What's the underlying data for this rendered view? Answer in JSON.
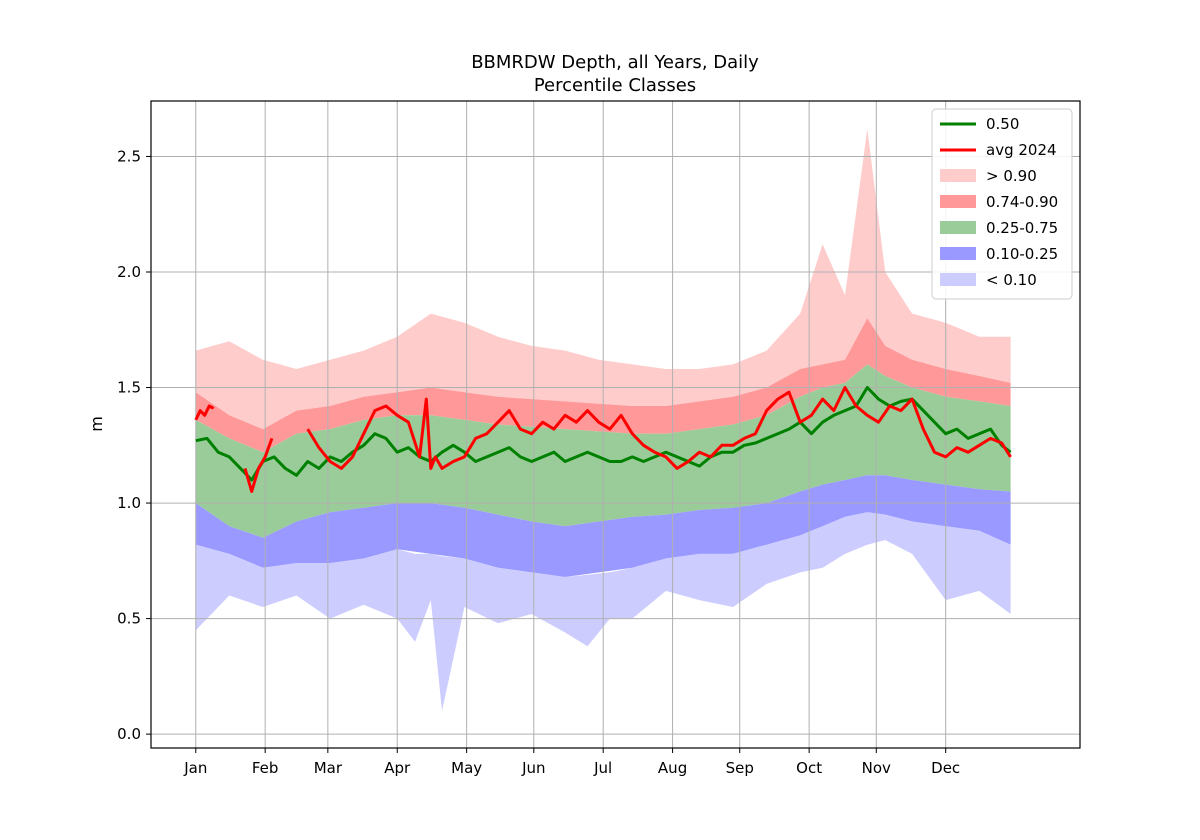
{
  "chart_data": {
    "type": "area",
    "title": "BBMRDW Depth, all Years, Daily",
    "subtitle": "Percentile Classes",
    "xlabel": "",
    "ylabel": "m",
    "xlim": [
      -20,
      395
    ],
    "ylim": [
      -0.06,
      2.74
    ],
    "yticks": [
      0.0,
      0.5,
      1.0,
      1.5,
      2.0,
      2.5
    ],
    "ytick_labels": [
      "0.0",
      "0.5",
      "1.0",
      "1.5",
      "2.0",
      "2.5"
    ],
    "xticks": [
      0,
      31,
      59,
      90,
      121,
      151,
      182,
      213,
      243,
      274,
      304,
      335
    ],
    "xtick_labels": [
      "Jan",
      "Feb",
      "Mar",
      "Apr",
      "May",
      "Jun",
      "Jul",
      "Aug",
      "Sep",
      "Oct",
      "Nov",
      "Dec"
    ],
    "grid": true,
    "legend_position": "top-right",
    "bands": [
      {
        "name": "> 0.90",
        "color": "#ffcccc",
        "x": [
          0,
          15,
          30,
          45,
          60,
          75,
          90,
          105,
          120,
          135,
          150,
          165,
          180,
          195,
          210,
          225,
          240,
          255,
          270,
          280,
          290,
          300,
          308,
          320,
          335,
          350,
          364
        ],
        "upper": [
          1.66,
          1.7,
          1.62,
          1.58,
          1.62,
          1.66,
          1.72,
          1.82,
          1.78,
          1.72,
          1.68,
          1.66,
          1.62,
          1.6,
          1.58,
          1.58,
          1.6,
          1.66,
          1.82,
          2.12,
          1.9,
          2.62,
          2.0,
          1.82,
          1.78,
          1.72,
          1.72
        ],
        "lower": [
          1.48,
          1.38,
          1.32,
          1.4,
          1.42,
          1.46,
          1.48,
          1.5,
          1.48,
          1.46,
          1.45,
          1.44,
          1.43,
          1.42,
          1.42,
          1.44,
          1.46,
          1.5,
          1.58,
          1.6,
          1.62,
          1.8,
          1.68,
          1.62,
          1.58,
          1.55,
          1.52
        ]
      },
      {
        "name": "0.74-0.90",
        "color": "#ff9999",
        "x": [
          0,
          15,
          30,
          45,
          60,
          75,
          90,
          105,
          120,
          135,
          150,
          165,
          180,
          195,
          210,
          225,
          240,
          255,
          270,
          280,
          290,
          300,
          308,
          320,
          335,
          350,
          364
        ],
        "upper": [
          1.48,
          1.38,
          1.32,
          1.4,
          1.42,
          1.46,
          1.48,
          1.5,
          1.48,
          1.46,
          1.45,
          1.44,
          1.43,
          1.42,
          1.42,
          1.44,
          1.46,
          1.5,
          1.58,
          1.6,
          1.62,
          1.8,
          1.68,
          1.62,
          1.58,
          1.55,
          1.52
        ],
        "lower": [
          1.36,
          1.28,
          1.22,
          1.3,
          1.32,
          1.36,
          1.38,
          1.38,
          1.36,
          1.34,
          1.33,
          1.32,
          1.31,
          1.3,
          1.3,
          1.32,
          1.34,
          1.38,
          1.46,
          1.5,
          1.52,
          1.6,
          1.55,
          1.5,
          1.46,
          1.44,
          1.42
        ]
      },
      {
        "name": "0.25-0.75",
        "color": "#99cc99",
        "x": [
          0,
          15,
          30,
          45,
          60,
          75,
          90,
          105,
          120,
          135,
          150,
          165,
          180,
          195,
          210,
          225,
          240,
          255,
          270,
          280,
          290,
          300,
          308,
          320,
          335,
          350,
          364
        ],
        "upper": [
          1.36,
          1.28,
          1.22,
          1.3,
          1.32,
          1.36,
          1.38,
          1.38,
          1.36,
          1.34,
          1.33,
          1.32,
          1.31,
          1.3,
          1.3,
          1.32,
          1.34,
          1.38,
          1.46,
          1.5,
          1.52,
          1.6,
          1.55,
          1.5,
          1.46,
          1.44,
          1.42
        ],
        "lower": [
          1.0,
          0.9,
          0.85,
          0.92,
          0.96,
          0.98,
          1.0,
          1.0,
          0.98,
          0.95,
          0.92,
          0.9,
          0.92,
          0.94,
          0.95,
          0.97,
          0.98,
          1.0,
          1.05,
          1.08,
          1.1,
          1.12,
          1.12,
          1.1,
          1.08,
          1.06,
          1.05
        ]
      },
      {
        "name": "0.10-0.25",
        "color": "#9999ff",
        "x": [
          0,
          15,
          30,
          45,
          60,
          75,
          90,
          105,
          120,
          135,
          150,
          165,
          180,
          195,
          210,
          225,
          240,
          255,
          270,
          280,
          290,
          300,
          308,
          320,
          335,
          350,
          364
        ],
        "upper": [
          1.0,
          0.9,
          0.85,
          0.92,
          0.96,
          0.98,
          1.0,
          1.0,
          0.98,
          0.95,
          0.92,
          0.9,
          0.92,
          0.94,
          0.95,
          0.97,
          0.98,
          1.0,
          1.05,
          1.08,
          1.1,
          1.12,
          1.12,
          1.1,
          1.08,
          1.06,
          1.05
        ],
        "lower": [
          0.82,
          0.78,
          0.72,
          0.74,
          0.74,
          0.76,
          0.8,
          0.78,
          0.76,
          0.72,
          0.7,
          0.68,
          0.7,
          0.72,
          0.76,
          0.78,
          0.78,
          0.82,
          0.86,
          0.9,
          0.94,
          0.96,
          0.95,
          0.92,
          0.9,
          0.88,
          0.82
        ]
      },
      {
        "name": "< 0.10",
        "color": "#ccccff",
        "x": [
          0,
          15,
          30,
          45,
          60,
          75,
          90,
          98,
          105,
          110,
          120,
          135,
          150,
          165,
          175,
          185,
          195,
          210,
          225,
          240,
          255,
          270,
          280,
          290,
          300,
          308,
          320,
          335,
          350,
          364
        ],
        "upper": [
          0.82,
          0.78,
          0.72,
          0.74,
          0.74,
          0.76,
          0.8,
          0.78,
          0.78,
          0.77,
          0.76,
          0.72,
          0.7,
          0.68,
          0.69,
          0.7,
          0.72,
          0.76,
          0.78,
          0.78,
          0.82,
          0.86,
          0.9,
          0.94,
          0.96,
          0.95,
          0.92,
          0.9,
          0.88,
          0.82
        ],
        "lower": [
          0.45,
          0.6,
          0.55,
          0.6,
          0.5,
          0.56,
          0.5,
          0.4,
          0.58,
          0.1,
          0.55,
          0.48,
          0.52,
          0.44,
          0.38,
          0.5,
          0.5,
          0.62,
          0.58,
          0.55,
          0.65,
          0.7,
          0.72,
          0.78,
          0.82,
          0.84,
          0.78,
          0.58,
          0.62,
          0.52
        ]
      }
    ],
    "series": [
      {
        "name": "0.50",
        "color": "#008000",
        "x": [
          0,
          5,
          10,
          15,
          20,
          25,
          30,
          35,
          40,
          45,
          50,
          55,
          60,
          65,
          70,
          75,
          80,
          85,
          90,
          95,
          100,
          105,
          110,
          115,
          120,
          125,
          130,
          135,
          140,
          145,
          150,
          155,
          160,
          165,
          170,
          175,
          180,
          185,
          190,
          195,
          200,
          205,
          210,
          215,
          220,
          225,
          230,
          235,
          240,
          245,
          250,
          255,
          260,
          265,
          270,
          275,
          280,
          285,
          290,
          295,
          300,
          305,
          310,
          315,
          320,
          325,
          330,
          335,
          340,
          345,
          350,
          355,
          360,
          364
        ],
        "y": [
          1.27,
          1.28,
          1.22,
          1.2,
          1.15,
          1.1,
          1.18,
          1.2,
          1.15,
          1.12,
          1.18,
          1.15,
          1.2,
          1.18,
          1.22,
          1.25,
          1.3,
          1.28,
          1.22,
          1.24,
          1.2,
          1.18,
          1.22,
          1.25,
          1.22,
          1.18,
          1.2,
          1.22,
          1.24,
          1.2,
          1.18,
          1.2,
          1.22,
          1.18,
          1.2,
          1.22,
          1.2,
          1.18,
          1.18,
          1.2,
          1.18,
          1.2,
          1.22,
          1.2,
          1.18,
          1.16,
          1.2,
          1.22,
          1.22,
          1.25,
          1.26,
          1.28,
          1.3,
          1.32,
          1.35,
          1.3,
          1.35,
          1.38,
          1.4,
          1.42,
          1.5,
          1.45,
          1.42,
          1.44,
          1.45,
          1.4,
          1.35,
          1.3,
          1.32,
          1.28,
          1.3,
          1.32,
          1.25,
          1.22
        ]
      },
      {
        "name": "avg 2024",
        "color": "#ff0000",
        "x": [
          0,
          2,
          4,
          6,
          8,
          null,
          22,
          25,
          28,
          31,
          34,
          null,
          50,
          55,
          60,
          65,
          70,
          75,
          80,
          85,
          90,
          95,
          100,
          103,
          105,
          107,
          110,
          115,
          120,
          125,
          130,
          135,
          140,
          145,
          150,
          155,
          160,
          165,
          170,
          175,
          180,
          185,
          190,
          195,
          200,
          205,
          210,
          215,
          220,
          225,
          230,
          235,
          240,
          245,
          250,
          255,
          260,
          265,
          270,
          275,
          280,
          285,
          290,
          295,
          300,
          305,
          310,
          315,
          320,
          325,
          330,
          335,
          340,
          345,
          350,
          355,
          360,
          364
        ],
        "y": [
          1.36,
          1.4,
          1.38,
          1.42,
          1.41,
          null,
          1.15,
          1.05,
          1.15,
          1.2,
          1.28,
          null,
          1.32,
          1.24,
          1.18,
          1.15,
          1.2,
          1.3,
          1.4,
          1.42,
          1.38,
          1.35,
          1.2,
          1.45,
          1.15,
          1.2,
          1.15,
          1.18,
          1.2,
          1.28,
          1.3,
          1.35,
          1.4,
          1.32,
          1.3,
          1.35,
          1.32,
          1.38,
          1.35,
          1.4,
          1.35,
          1.32,
          1.38,
          1.3,
          1.25,
          1.22,
          1.2,
          1.15,
          1.18,
          1.22,
          1.2,
          1.25,
          1.25,
          1.28,
          1.3,
          1.4,
          1.45,
          1.48,
          1.35,
          1.38,
          1.45,
          1.4,
          1.5,
          1.42,
          1.38,
          1.35,
          1.42,
          1.4,
          1.45,
          1.32,
          1.22,
          1.2,
          1.24,
          1.22,
          1.25,
          1.28,
          1.26,
          1.2
        ]
      }
    ],
    "legend": [
      {
        "label": "0.50",
        "kind": "line",
        "color": "#008000"
      },
      {
        "label": "avg 2024",
        "kind": "line",
        "color": "#ff0000"
      },
      {
        "label": "> 0.90",
        "kind": "patch",
        "color": "#ffcccc"
      },
      {
        "label": "0.74-0.90",
        "kind": "patch",
        "color": "#ff9999"
      },
      {
        "label": "0.25-0.75",
        "kind": "patch",
        "color": "#99cc99"
      },
      {
        "label": "0.10-0.25",
        "kind": "patch",
        "color": "#9999ff"
      },
      {
        "label": "< 0.10",
        "kind": "patch",
        "color": "#ccccff"
      }
    ]
  }
}
